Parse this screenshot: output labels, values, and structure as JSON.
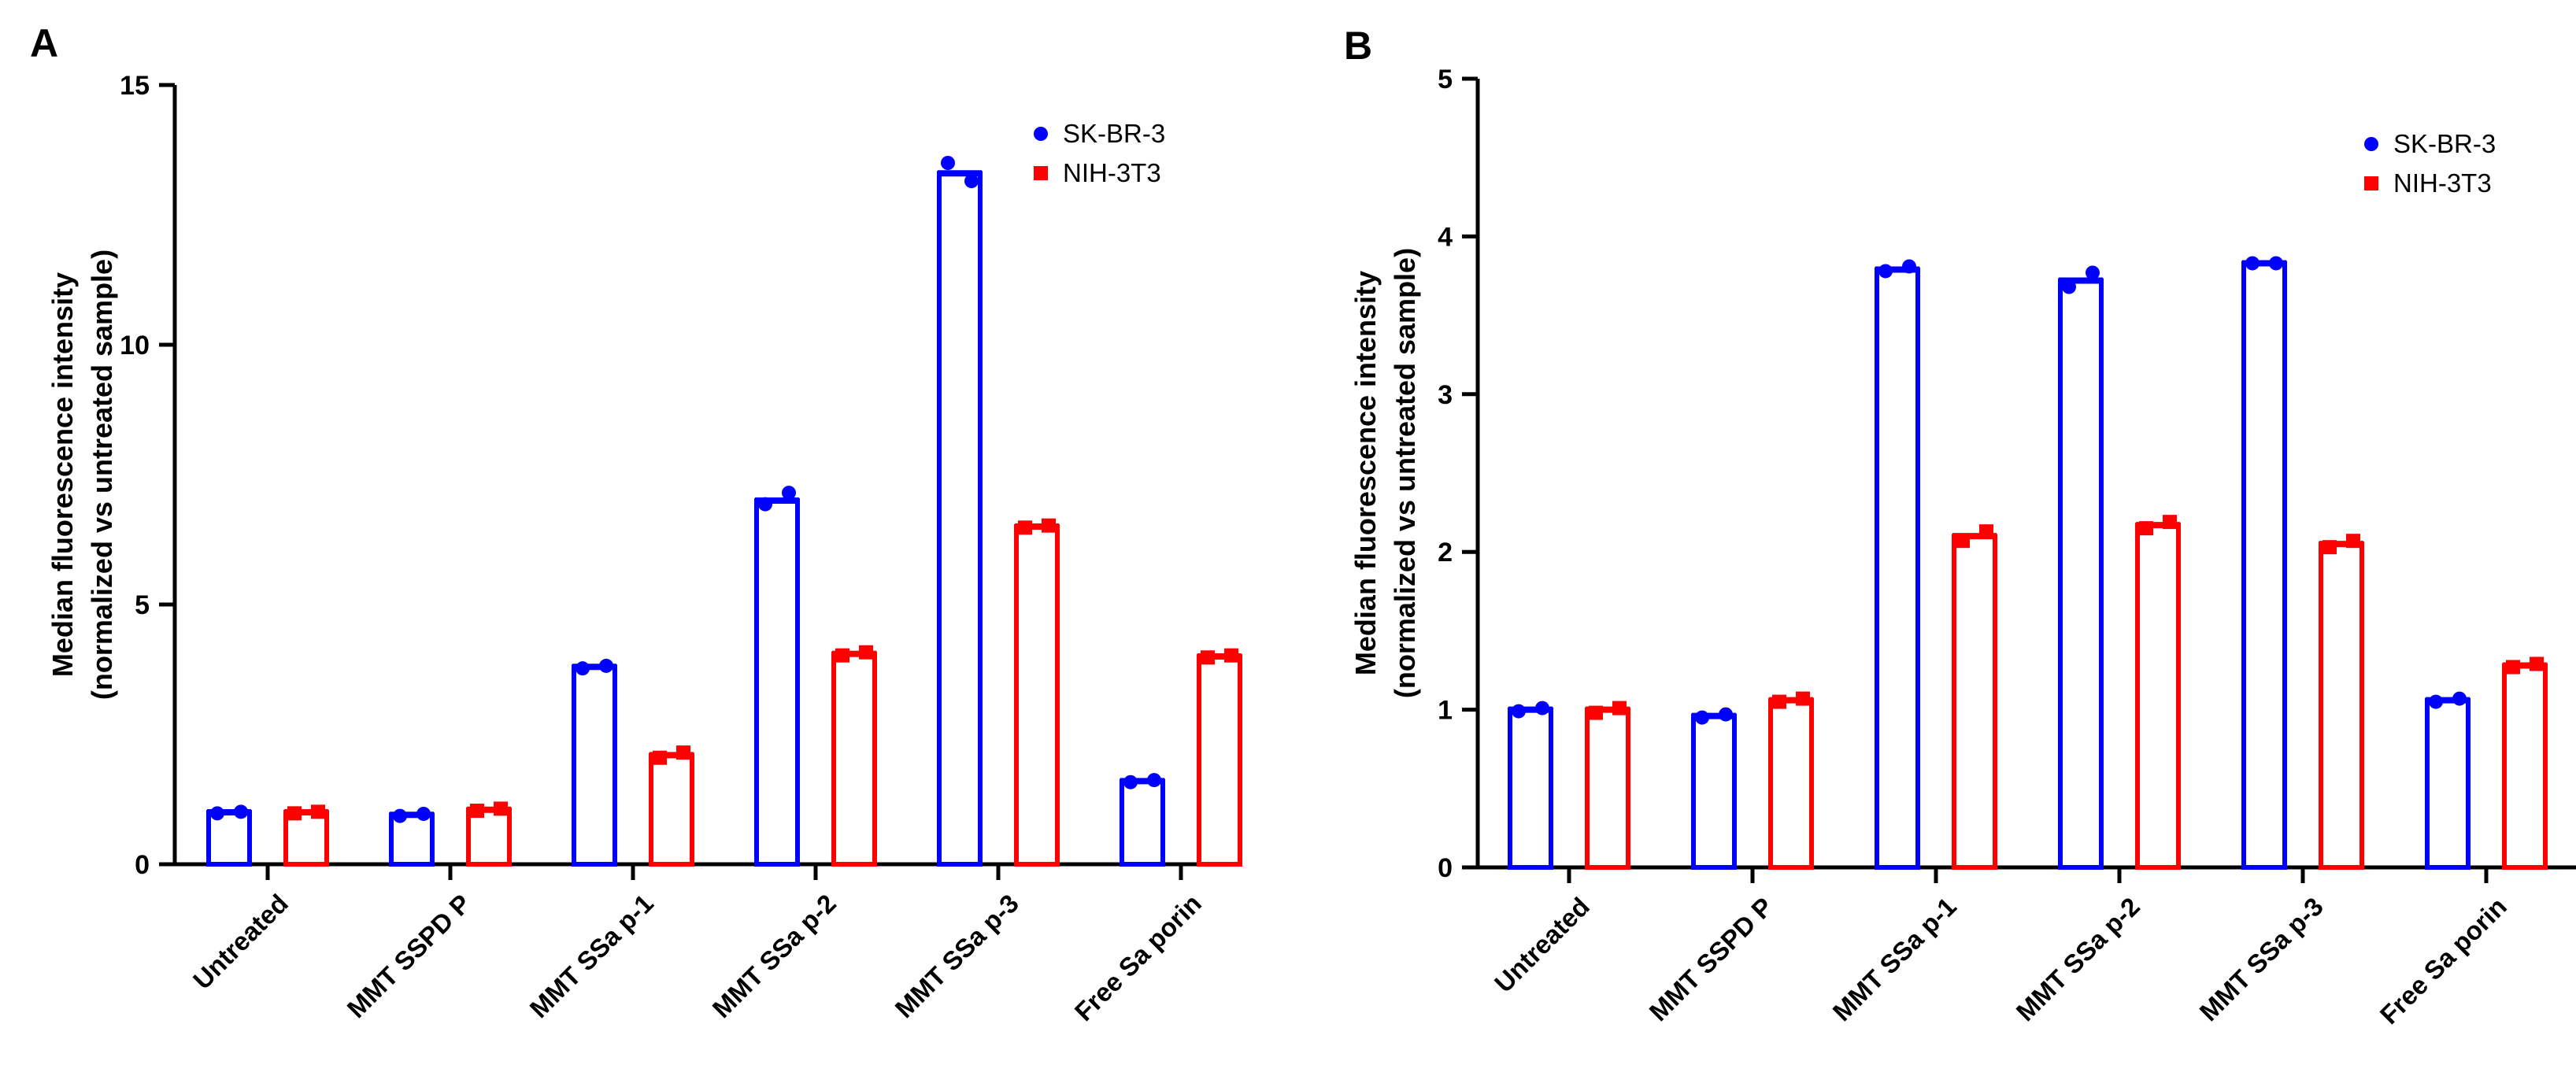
{
  "colors": {
    "series1": "#0000ff",
    "series2": "#ff0000",
    "axis": "#000000"
  },
  "chart_data": [
    {
      "panel": "A",
      "type": "bar",
      "categories": [
        "Untreated",
        "MMT SSPD P",
        "MMT SSa p-1",
        "MMT SSa p-2",
        "MMT SSa p-3",
        "Free Sa porin"
      ],
      "ylabel_lines": [
        "Median fluorescence intensity",
        "(normalized vs untreated sample)"
      ],
      "ylim": [
        0,
        15
      ],
      "yticks": [
        0,
        5,
        10,
        15
      ],
      "legend": "top-right",
      "series": [
        {
          "name": "SK-BR-3",
          "marker": "circle",
          "color": "#0000ff",
          "values": [
            1.0,
            0.95,
            3.8,
            7.0,
            13.3,
            1.6
          ],
          "points": [
            [
              0.98,
              1.01
            ],
            [
              0.93,
              0.97
            ],
            [
              3.77,
              3.82
            ],
            [
              6.93,
              7.15
            ],
            [
              13.5,
              13.15
            ],
            [
              1.58,
              1.62
            ]
          ]
        },
        {
          "name": "NIH-3T3",
          "marker": "square",
          "color": "#ff0000",
          "values": [
            1.0,
            1.05,
            2.1,
            4.05,
            6.5,
            4.0
          ],
          "points": [
            [
              0.98,
              1.01
            ],
            [
              1.03,
              1.07
            ],
            [
              2.05,
              2.15
            ],
            [
              4.02,
              4.08
            ],
            [
              6.48,
              6.52
            ],
            [
              3.98,
              4.02
            ]
          ]
        }
      ]
    },
    {
      "panel": "B",
      "type": "bar",
      "categories": [
        "Untreated",
        "MMT SSPD P",
        "MMT SSa p-1",
        "MMT SSa p-2",
        "MMT SSa p-3",
        "Free Sa porin"
      ],
      "ylabel_lines": [
        "Median fluorescence intensity",
        "(normalized vs untreated sample)"
      ],
      "ylim": [
        0,
        5
      ],
      "yticks": [
        0,
        1,
        2,
        3,
        4,
        5
      ],
      "legend": "top-right",
      "series": [
        {
          "name": "SK-BR-3",
          "marker": "circle",
          "color": "#0000ff",
          "values": [
            1.0,
            0.96,
            3.79,
            3.72,
            3.83,
            1.06
          ],
          "points": [
            [
              0.99,
              1.01
            ],
            [
              0.95,
              0.97
            ],
            [
              3.78,
              3.81
            ],
            [
              3.68,
              3.77
            ],
            [
              3.83,
              3.83
            ],
            [
              1.05,
              1.07
            ]
          ]
        },
        {
          "name": "NIH-3T3",
          "marker": "square",
          "color": "#ff0000",
          "values": [
            1.0,
            1.06,
            2.1,
            2.17,
            2.05,
            1.28
          ],
          "points": [
            [
              0.98,
              1.01
            ],
            [
              1.05,
              1.07
            ],
            [
              2.07,
              2.13
            ],
            [
              2.15,
              2.19
            ],
            [
              2.03,
              2.07
            ],
            [
              1.27,
              1.29
            ]
          ]
        }
      ]
    }
  ]
}
